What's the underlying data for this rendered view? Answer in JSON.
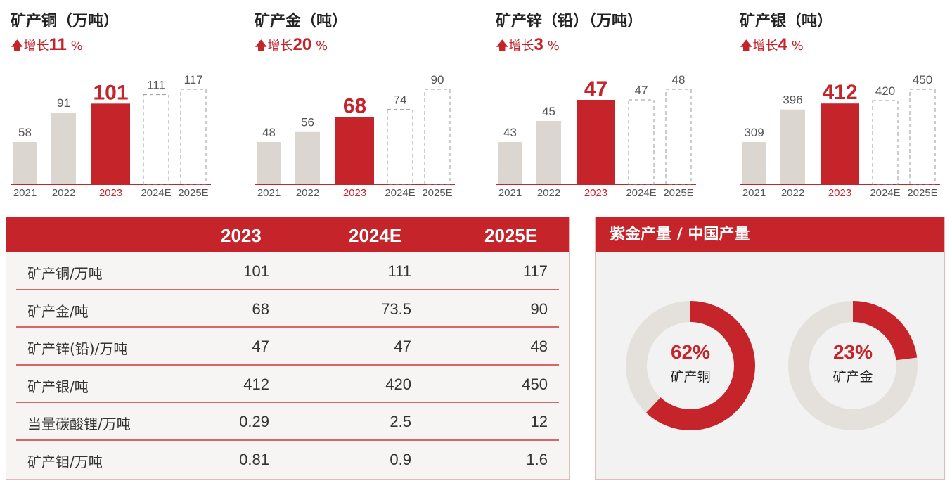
{
  "chart_data": [
    {
      "type": "bar",
      "title": "矿产铜（万吨）",
      "growth_prefix": "增长",
      "growth_value": "11",
      "growth_unit": "%",
      "categories": [
        "2021",
        "2022",
        "2023",
        "2024E",
        "2025E"
      ],
      "values": [
        58,
        91,
        101,
        111,
        117
      ],
      "highlight": "2023",
      "estimated": [
        "2024E",
        "2025E"
      ]
    },
    {
      "type": "bar",
      "title": "矿产金（吨）",
      "growth_prefix": "增长",
      "growth_value": "20",
      "growth_unit": "%",
      "categories": [
        "2021",
        "2022",
        "2023",
        "2024E",
        "2025E"
      ],
      "values": [
        48,
        56,
        68,
        74,
        90
      ],
      "highlight": "2023",
      "estimated": [
        "2024E",
        "2025E"
      ]
    },
    {
      "type": "bar",
      "title": "矿产锌（铅）（万吨）",
      "growth_prefix": "增长",
      "growth_value": "3",
      "growth_unit": "%",
      "categories": [
        "2021",
        "2022",
        "2023",
        "2024E",
        "2025E"
      ],
      "values": [
        43,
        45,
        47,
        47,
        48
      ],
      "highlight": "2023",
      "estimated": [
        "2024E",
        "2025E"
      ]
    },
    {
      "type": "bar",
      "title": "矿产银（吨）",
      "growth_prefix": "增长",
      "growth_value": "4",
      "growth_unit": "%",
      "categories": [
        "2021",
        "2022",
        "2023",
        "2024E",
        "2025E"
      ],
      "values": [
        309,
        396,
        412,
        420,
        450
      ],
      "highlight": "2023",
      "estimated": [
        "2024E",
        "2025E"
      ]
    },
    {
      "type": "pie",
      "title": "紫金产量 / 中国产量",
      "donuts": [
        {
          "label": "矿产铜",
          "value": 62,
          "text": "62%"
        },
        {
          "label": "矿产金",
          "value": 23,
          "text": "23%"
        }
      ]
    }
  ],
  "table": {
    "headers": [
      "",
      "2023",
      "2024E",
      "2025E"
    ],
    "rows": [
      [
        "矿产铜/万吨",
        "101",
        "111",
        "117"
      ],
      [
        "矿产金/吨",
        "68",
        "73.5",
        "90"
      ],
      [
        "矿产锌(铅)/万吨",
        "47",
        "47",
        "48"
      ],
      [
        "矿产银/吨",
        "412",
        "420",
        "450"
      ],
      [
        "当量碳酸锂/万吨",
        "0.29",
        "2.5",
        "12"
      ],
      [
        "矿产钼/万吨",
        "0.81",
        "0.9",
        "1.6"
      ]
    ]
  },
  "colors": {
    "accent": "#c4242a",
    "bar": "#dcd6d0",
    "track": "#e4e0dc",
    "text": "#333333"
  }
}
